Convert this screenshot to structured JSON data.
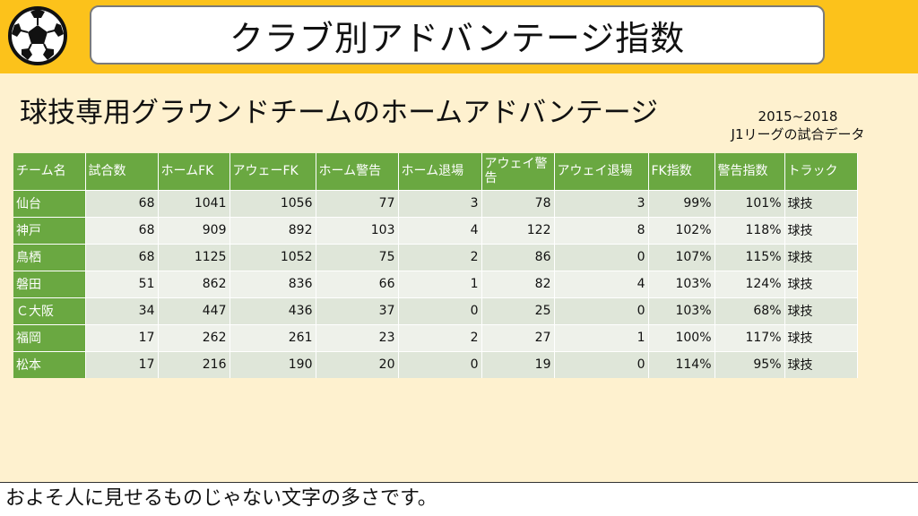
{
  "header": {
    "title": "クラブ別アドバンテージ指数",
    "logo_icon": "soccer-ball-icon"
  },
  "subtitle": "球技専用グラウンドチームのホームアドバンテージ",
  "period": {
    "years": "2015~2018",
    "note": "J1リーグの試合データ"
  },
  "colors": {
    "band": "#fcc21b",
    "background": "#fef1cf",
    "header_green": "#6aa841"
  },
  "table": {
    "headers": [
      "チーム名",
      "試合数",
      "ホームFK",
      "アウェーFK",
      "ホーム警告",
      "ホーム退場",
      "アウェイ警告",
      "アウェイ退場",
      "FK指数",
      "警告指数",
      "トラック"
    ],
    "rows": [
      [
        "仙台",
        "68",
        "1041",
        "1056",
        "77",
        "3",
        "78",
        "3",
        "99%",
        "101%",
        "球技"
      ],
      [
        "神戸",
        "68",
        "909",
        "892",
        "103",
        "4",
        "122",
        "8",
        "102%",
        "118%",
        "球技"
      ],
      [
        "鳥栖",
        "68",
        "1125",
        "1052",
        "75",
        "2",
        "86",
        "0",
        "107%",
        "115%",
        "球技"
      ],
      [
        "磐田",
        "51",
        "862",
        "836",
        "66",
        "1",
        "82",
        "4",
        "103%",
        "124%",
        "球技"
      ],
      [
        "Ｃ大阪",
        "34",
        "447",
        "436",
        "37",
        "0",
        "25",
        "0",
        "103%",
        "68%",
        "球技"
      ],
      [
        "福岡",
        "17",
        "262",
        "261",
        "23",
        "2",
        "27",
        "1",
        "100%",
        "117%",
        "球技"
      ],
      [
        "松本",
        "17",
        "216",
        "190",
        "20",
        "0",
        "19",
        "0",
        "114%",
        "95%",
        "球技"
      ]
    ]
  },
  "footer": "およそ人に見せるものじゃない文字の多さです。"
}
